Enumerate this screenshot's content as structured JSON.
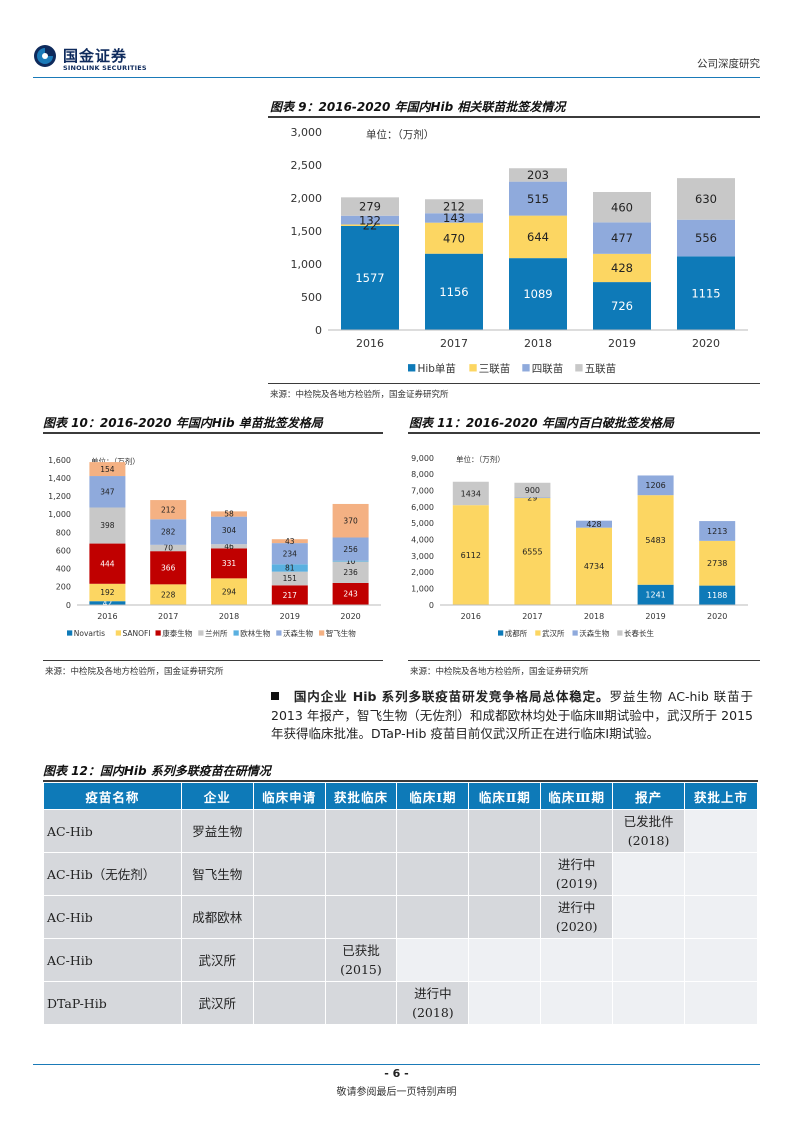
{
  "header": {
    "logo_cn": "国金证券",
    "logo_en": "SINOLINK SECURITIES",
    "report_type": "公司深度研究"
  },
  "figure9": {
    "title": "图表 9：2016-2020 年国内Hib 相关联苗批签发情况",
    "source": "来源：中检院及各地方检验所，国金证券研究所"
  },
  "figure10": {
    "title": "图表 10：2016-2020 年国内Hib 单苗批签发格局",
    "source": "来源：中检院及各地方检验所，国金证券研究所"
  },
  "figure11": {
    "title": "图表 11：2016-2020 年国内百白破批签发格局",
    "source": "来源：中检院及各地方检验所，国金证券研究所"
  },
  "chart_data": [
    {
      "type": "bar",
      "stacked": true,
      "unit_note": "单位：（万剂）",
      "categories": [
        "2016",
        "2017",
        "2018",
        "2019",
        "2020"
      ],
      "series": [
        {
          "name": "Hib单苗",
          "color": "#0e7ab8",
          "values": [
            1577,
            1156,
            1089,
            726,
            1115
          ]
        },
        {
          "name": "三联苗",
          "color": "#fcd662",
          "values": [
            22,
            470,
            644,
            428,
            0
          ]
        },
        {
          "name": "四联苗",
          "color": "#8faadc",
          "values": [
            132,
            143,
            515,
            477,
            556
          ]
        },
        {
          "name": "五联苗",
          "color": "#c8c8c8",
          "values": [
            279,
            212,
            203,
            460,
            630
          ]
        }
      ],
      "ylim": [
        0,
        3000
      ],
      "yticks": [
        "0",
        "500",
        "1,000",
        "1,500",
        "2,000",
        "2,500",
        "3,000"
      ],
      "ytick_values": [
        0,
        500,
        1000,
        1500,
        2000,
        2500,
        3000
      ],
      "legend": "bottom",
      "grid": false
    },
    {
      "type": "bar",
      "stacked": true,
      "unit_note": "单位：（万剂）",
      "categories": [
        "2016",
        "2017",
        "2018",
        "2019",
        "2020"
      ],
      "series": [
        {
          "name": "Novartis",
          "color": "#0e7ab8",
          "values": [
            42,
            0,
            0,
            0,
            0
          ],
          "labels": [
            "42",
            "",
            "",
            "",
            ""
          ]
        },
        {
          "name": "SANOFI",
          "color": "#fcd662",
          "values": [
            192,
            228,
            294,
            0,
            0
          ],
          "labels": [
            "192",
            "228",
            "294",
            "",
            ""
          ]
        },
        {
          "name": "康泰生物",
          "color": "#c00000",
          "values": [
            444,
            366,
            331,
            217,
            243
          ],
          "labels": [
            "444",
            "366",
            "331",
            "217",
            "243"
          ]
        },
        {
          "name": "兰州所",
          "color": "#c8c8c8",
          "values": [
            398,
            70,
            46,
            151,
            236
          ],
          "labels": [
            "398",
            "70",
            "46",
            "151",
            "236"
          ]
        },
        {
          "name": "欧林生物",
          "color": "#5ab0e0",
          "values": [
            0,
            0,
            0,
            81,
            10
          ],
          "labels": [
            "",
            "",
            "",
            "81",
            "10"
          ]
        },
        {
          "name": "沃森生物",
          "color": "#8faadc",
          "values": [
            347,
            282,
            304,
            234,
            256
          ],
          "labels": [
            "347",
            "282",
            "304",
            "234",
            "256"
          ]
        },
        {
          "name": "智飞生物",
          "color": "#f4b183",
          "values": [
            154,
            212,
            58,
            43,
            370
          ],
          "labels": [
            "154",
            "212",
            "58",
            "43",
            "370"
          ]
        }
      ],
      "ylim": [
        0,
        1600
      ],
      "yticks": [
        "0",
        "200",
        "400",
        "600",
        "800",
        "1,000",
        "1,200",
        "1,400",
        "1,600"
      ],
      "ytick_values": [
        0,
        200,
        400,
        600,
        800,
        1000,
        1200,
        1400,
        1600
      ],
      "legend": "bottom",
      "grid": false
    },
    {
      "type": "bar",
      "stacked": true,
      "unit_note": "单位：（万剂）",
      "categories": [
        "2016",
        "2017",
        "2018",
        "2019",
        "2020"
      ],
      "series": [
        {
          "name": "成都所",
          "color": "#0e7ab8",
          "values": [
            0,
            0,
            0,
            1241,
            1188
          ],
          "labels": [
            "",
            "",
            "",
            "1241",
            "1188"
          ]
        },
        {
          "name": "武汉所",
          "color": "#fcd662",
          "values": [
            6112,
            6555,
            4734,
            5483,
            2738
          ],
          "labels": [
            "6112",
            "6555",
            "4734",
            "5483",
            "2738"
          ]
        },
        {
          "name": "沃森生物",
          "color": "#8faadc",
          "values": [
            0,
            29,
            428,
            1206,
            1213
          ],
          "labels": [
            "",
            "29",
            "428",
            "1206",
            "1213"
          ]
        },
        {
          "name": "长春长生",
          "color": "#c8c8c8",
          "values": [
            1434,
            900,
            0,
            0,
            0
          ],
          "labels": [
            "1434",
            "900",
            "",
            "",
            ""
          ]
        }
      ],
      "ylim": [
        0,
        9000
      ],
      "yticks": [
        "0",
        "1,000",
        "2,000",
        "3,000",
        "4,000",
        "5,000",
        "6,000",
        "7,000",
        "8,000",
        "9,000"
      ],
      "ytick_values": [
        0,
        1000,
        2000,
        3000,
        4000,
        5000,
        6000,
        7000,
        8000,
        9000
      ],
      "legend": "bottom",
      "grid": false
    }
  ],
  "paragraph": {
    "bold_lead": "国内企业 Hib 系列多联疫苗研发竞争格局总体稳定。",
    "text": "罗益生物 AC-hib 联苗于 2013 年报产，智飞生物（无佐剂）和成都欧林均处于临床Ⅲ期试验中，武汉所于 2015 年获得临床批准。DTaP-Hib 疫苗目前仅武汉所正在进行临床Ⅰ期试验。"
  },
  "table12": {
    "title": "图表 12：国内Hib 系列多联疫苗在研情况",
    "headers": [
      "疫苗名称",
      "企业",
      "临床申请",
      "获批临床",
      "临床Ⅰ期",
      "临床Ⅱ期",
      "临床Ⅲ期",
      "报产",
      "获批上市"
    ],
    "rows": [
      {
        "name": "AC-Hib",
        "company": "罗益生物",
        "stage_line1": "已发批件",
        "stage_line2": "(2018)"
      },
      {
        "name": "AC-Hib（无佐剂）",
        "company": "智飞生物",
        "stage_line1": "进行中",
        "stage_line2": "(2019)"
      },
      {
        "name": "AC-Hib",
        "company": "成都欧林",
        "stage_line1": "进行中",
        "stage_line2": "(2020)"
      },
      {
        "name": "AC-Hib",
        "company": "武汉所",
        "stage_line1": "已获批",
        "stage_line2": "(2015)"
      },
      {
        "name": "DTaP-Hib",
        "company": "武汉所",
        "stage_line1": "进行中",
        "stage_line2": "(2018)"
      }
    ]
  },
  "footer": {
    "page": "- 6 -",
    "disclaimer": "敬请参阅最后一页特别声明"
  }
}
